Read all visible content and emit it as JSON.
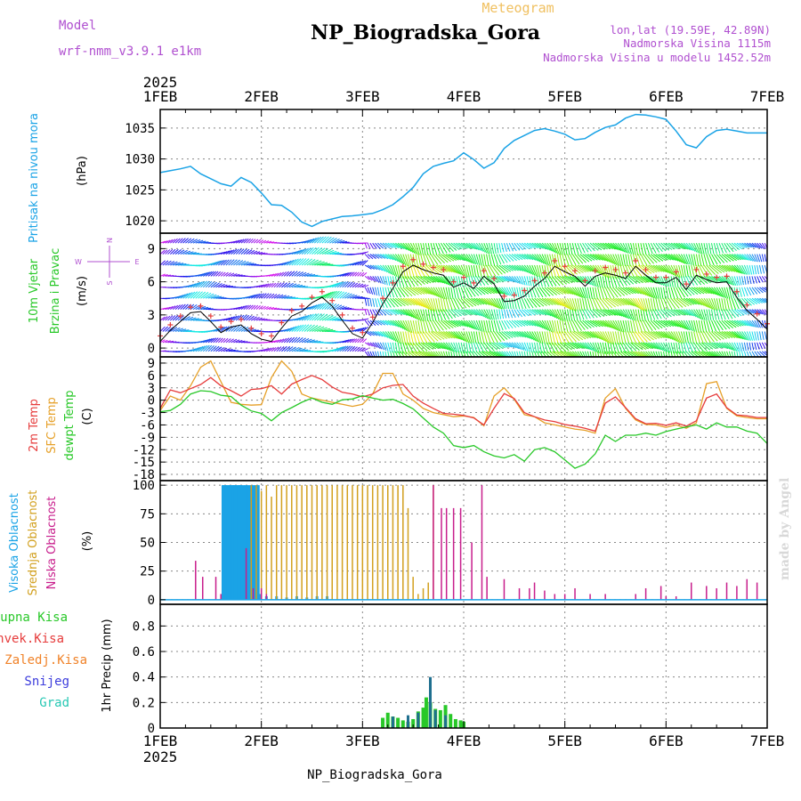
{
  "header": {
    "title": "NP_Biogradska_Gora",
    "subtitle": "Meteogram",
    "model_label": "Model",
    "model_name": "wrf-nmm_v3.9.1 e1km",
    "lonlat": "lon,lat (19.59E, 42.89N)",
    "elevation": "Nadmorska Visina 1115m",
    "model_elevation": "Nadmorska Visina u modelu 1452.52m",
    "year_top": "2025",
    "year_bottom": "2025",
    "footer_station": "NP_Biogradska_Gora",
    "watermark": "made by Angel"
  },
  "time_axis": {
    "labels": [
      "1FEB",
      "2FEB",
      "3FEB",
      "4FEB",
      "5FEB",
      "6FEB",
      "7FEB"
    ]
  },
  "colors": {
    "pressure": "#1aa3e6",
    "temp2m": "#e63c3c",
    "sfc_temp": "#e6a028",
    "dewpoint": "#28c828",
    "cloud_high": "#1aa3e6",
    "cloud_mid": "#d2a01e",
    "cloud_low": "#c81e8c",
    "precip_total": "#28c828",
    "precip_conv": "#e63c3c",
    "precip_frz": "#f08228",
    "precip_snow": "#3c3cdc",
    "precip_hail": "#28c8b4",
    "title_purple": "#b050d0",
    "subtitle_orange": "#f0c060"
  },
  "panels": {
    "pressure": {
      "label": "Pritisak na nivou mora",
      "unit": "(hPa)",
      "ticks": [
        "1020",
        "1025",
        "1030",
        "1035"
      ]
    },
    "wind": {
      "label1": "10m Vjetar",
      "label2": "Brzina i Pravac",
      "unit": "(m/s)",
      "ticks": [
        "0",
        "3",
        "6",
        "9"
      ],
      "compass": {
        "n": "N",
        "s": "S",
        "w": "W",
        "e": "E"
      }
    },
    "temp": {
      "label1": "2m Temp",
      "label2": "SFC Temp",
      "label3": "dewpt Temp",
      "unit": "(C)",
      "ticks": [
        "-18",
        "-15",
        "-12",
        "-9",
        "-6",
        "-3",
        "0",
        "3",
        "6",
        "9"
      ]
    },
    "cloud": {
      "label1": "Visoka Oblacnost",
      "label2": "Srednja Oblacnost",
      "label3": "Niska Oblacnost",
      "unit": "(%)",
      "ticks": [
        "0",
        "25",
        "50",
        "75",
        "100"
      ]
    },
    "precip": {
      "unit_label": "1hr Precip (mm)",
      "ticks": [
        "0",
        "0.2",
        "0.4",
        "0.6",
        "0.8"
      ],
      "legend": [
        "Ukupna Kisa",
        "Konvek.Kisa",
        "Zaledj.Kisa",
        "Snijeg",
        "Grad"
      ]
    }
  },
  "chart_data": [
    {
      "type": "line",
      "name": "sea-level-pressure",
      "x_unit": "days since 1FEB 00UTC",
      "ylabel": "Pritisak na nivou mora (hPa)",
      "ylim": [
        1018,
        1038
      ],
      "series": [
        {
          "name": "Pritisak",
          "x": [
            0,
            0.1,
            0.2,
            0.3,
            0.4,
            0.5,
            0.6,
            0.7,
            0.8,
            0.9,
            1.0,
            1.1,
            1.2,
            1.3,
            1.4,
            1.5,
            1.6,
            1.7,
            1.8,
            1.9,
            2.0,
            2.1,
            2.2,
            2.3,
            2.4,
            2.5,
            2.6,
            2.7,
            2.8,
            2.9,
            3.0,
            3.1,
            3.2,
            3.3,
            3.4,
            3.5,
            3.6,
            3.7,
            3.8,
            3.9,
            4.0,
            4.1,
            4.2,
            4.3,
            4.4,
            4.5,
            4.6,
            4.7,
            4.8,
            4.9,
            5.0,
            5.1,
            5.2,
            5.3,
            5.4,
            5.5,
            5.6,
            5.7,
            5.8,
            5.9,
            6.0
          ],
          "y": [
            1027.8,
            1028.1,
            1028.4,
            1028.8,
            1027.6,
            1026.8,
            1026.0,
            1025.6,
            1027.0,
            1026.2,
            1024.5,
            1022.6,
            1022.5,
            1021.4,
            1019.8,
            1019.1,
            1019.9,
            1020.3,
            1020.7,
            1020.8,
            1021.0,
            1021.2,
            1021.8,
            1022.6,
            1023.9,
            1025.4,
            1027.6,
            1028.8,
            1029.3,
            1029.7,
            1031.0,
            1029.9,
            1028.5,
            1029.4,
            1031.7,
            1033.0,
            1033.8,
            1034.6,
            1034.9,
            1034.5,
            1034.0,
            1033.1,
            1033.3,
            1034.3,
            1035.1,
            1035.5,
            1036.6,
            1037.2,
            1037.1,
            1036.8,
            1036.4,
            1034.5,
            1032.3,
            1031.8,
            1033.6,
            1034.6,
            1034.8,
            1034.5,
            1034.2,
            1034.2,
            1034.2
          ]
        }
      ]
    },
    {
      "type": "line",
      "name": "10m-wind-speed",
      "ylabel": "10m Vjetar Brzina i Pravac (m/s)",
      "ylim": [
        -0.8,
        10.4
      ],
      "series": [
        {
          "name": "Brzina",
          "x": [
            0,
            0.1,
            0.2,
            0.3,
            0.4,
            0.5,
            0.6,
            0.7,
            0.8,
            0.9,
            1.0,
            1.1,
            1.2,
            1.3,
            1.4,
            1.5,
            1.6,
            1.7,
            1.8,
            1.9,
            2.0,
            2.1,
            2.2,
            2.3,
            2.4,
            2.5,
            2.6,
            2.7,
            2.8,
            2.9,
            3.0,
            3.1,
            3.2,
            3.3,
            3.4,
            3.5,
            3.6,
            3.7,
            3.8,
            3.9,
            4.0,
            4.1,
            4.2,
            4.3,
            4.4,
            4.5,
            4.6,
            4.7,
            4.8,
            4.9,
            5.0,
            5.1,
            5.2,
            5.3,
            5.4,
            5.5,
            5.6,
            5.7,
            5.8,
            5.9,
            6.0
          ],
          "y": [
            0.6,
            1.6,
            2.4,
            3.2,
            3.3,
            2.4,
            1.4,
            1.9,
            2.1,
            1.3,
            0.8,
            0.6,
            1.8,
            2.9,
            3.3,
            4.1,
            4.6,
            3.8,
            2.5,
            1.3,
            0.9,
            2.3,
            4.0,
            5.4,
            6.9,
            7.5,
            7.1,
            6.8,
            6.6,
            5.5,
            5.9,
            5.4,
            6.5,
            5.8,
            4.2,
            4.3,
            4.7,
            5.6,
            6.3,
            7.4,
            6.9,
            6.5,
            5.6,
            6.5,
            6.8,
            6.6,
            6.3,
            7.4,
            6.6,
            5.9,
            5.9,
            6.4,
            5.3,
            6.6,
            6.2,
            5.9,
            6.0,
            4.6,
            3.4,
            2.6,
            1.7
          ]
        }
      ]
    },
    {
      "type": "line",
      "name": "temperatures",
      "ylabel": "(C)",
      "ylim": [
        -19.5,
        10.5
      ],
      "series": [
        {
          "name": "2m Temp",
          "x": [
            0,
            0.1,
            0.2,
            0.3,
            0.4,
            0.5,
            0.6,
            0.7,
            0.8,
            0.9,
            1.0,
            1.1,
            1.2,
            1.3,
            1.4,
            1.5,
            1.6,
            1.7,
            1.8,
            1.9,
            2.0,
            2.1,
            2.2,
            2.3,
            2.4,
            2.5,
            2.6,
            2.7,
            2.8,
            2.9,
            3.0,
            3.1,
            3.2,
            3.3,
            3.4,
            3.5,
            3.6,
            3.7,
            3.8,
            3.9,
            4.0,
            4.1,
            4.2,
            4.3,
            4.4,
            4.5,
            4.6,
            4.7,
            4.8,
            4.9,
            5.0,
            5.1,
            5.2,
            5.3,
            5.4,
            5.5,
            5.6,
            5.7,
            5.8,
            5.9,
            6.0
          ],
          "y": [
            -2.0,
            2.5,
            1.8,
            2.8,
            3.8,
            5.5,
            3.5,
            2.3,
            1.0,
            2.6,
            2.8,
            3.5,
            1.5,
            3.9,
            5.0,
            6.0,
            5.0,
            3.2,
            1.9,
            1.5,
            0.8,
            1.5,
            3.0,
            3.6,
            3.8,
            1.0,
            -0.7,
            -2.0,
            -3.2,
            -3.4,
            -3.7,
            -4.3,
            -6.0,
            -2.0,
            1.6,
            0.4,
            -3.0,
            -4.0,
            -4.8,
            -5.2,
            -5.9,
            -6.3,
            -6.8,
            -7.5,
            -0.7,
            0.8,
            -1.8,
            -4.5,
            -5.7,
            -5.6,
            -6.1,
            -5.5,
            -6.3,
            -5.0,
            0.5,
            1.5,
            -1.8,
            -3.6,
            -3.8,
            -4.2,
            -4.2
          ]
        },
        {
          "name": "SFC Temp",
          "x": [
            0,
            0.1,
            0.2,
            0.3,
            0.4,
            0.5,
            0.6,
            0.7,
            0.8,
            0.9,
            1.0,
            1.1,
            1.2,
            1.3,
            1.4,
            1.5,
            1.6,
            1.7,
            1.8,
            1.9,
            2.0,
            2.1,
            2.2,
            2.3,
            2.4,
            2.5,
            2.6,
            2.7,
            2.8,
            2.9,
            3.0,
            3.1,
            3.2,
            3.3,
            3.4,
            3.5,
            3.6,
            3.7,
            3.8,
            3.9,
            4.0,
            4.1,
            4.2,
            4.3,
            4.4,
            4.5,
            4.6,
            4.7,
            4.8,
            4.9,
            5.0,
            5.1,
            5.2,
            5.3,
            5.4,
            5.5,
            5.6,
            5.7,
            5.8,
            5.9,
            6.0
          ],
          "y": [
            -2.5,
            1.0,
            0.0,
            3.5,
            8.0,
            9.5,
            4.5,
            -0.5,
            -1.0,
            -1.2,
            -1.1,
            5.5,
            9.5,
            7.0,
            1.5,
            0.5,
            0.0,
            -0.5,
            -1.0,
            -1.5,
            -1.0,
            1.5,
            6.5,
            6.5,
            1.5,
            0.0,
            -2.0,
            -3.0,
            -3.5,
            -4.0,
            -3.8,
            -4.2,
            -6.2,
            1.0,
            3.0,
            0.2,
            -3.5,
            -4.0,
            -5.5,
            -6.0,
            -6.5,
            -7.0,
            -7.3,
            -8.0,
            0.5,
            2.8,
            -2.0,
            -4.8,
            -5.9,
            -6.0,
            -6.6,
            -6.0,
            -6.8,
            -5.5,
            4.0,
            4.5,
            -2.0,
            -3.8,
            -4.2,
            -4.5,
            -4.5
          ]
        },
        {
          "name": "dewpt Temp",
          "x": [
            0,
            0.1,
            0.2,
            0.3,
            0.4,
            0.5,
            0.6,
            0.7,
            0.8,
            0.9,
            1.0,
            1.1,
            1.2,
            1.3,
            1.4,
            1.5,
            1.6,
            1.7,
            1.8,
            1.9,
            2.0,
            2.1,
            2.2,
            2.3,
            2.4,
            2.5,
            2.6,
            2.7,
            2.8,
            2.9,
            3.0,
            3.1,
            3.2,
            3.3,
            3.4,
            3.5,
            3.6,
            3.7,
            3.8,
            3.9,
            4.0,
            4.1,
            4.2,
            4.3,
            4.4,
            4.5,
            4.6,
            4.7,
            4.8,
            4.9,
            5.0,
            5.1,
            5.2,
            5.3,
            5.4,
            5.5,
            5.6,
            5.7,
            5.8,
            5.9,
            6.0
          ],
          "y": [
            -2.8,
            -2.5,
            -1.0,
            1.5,
            2.3,
            2.1,
            1.2,
            0.9,
            -1.2,
            -2.6,
            -3.2,
            -5.0,
            -3.0,
            -1.8,
            -0.5,
            0.5,
            -0.5,
            -1.0,
            0.1,
            0.3,
            1.1,
            0.5,
            0.0,
            0.2,
            -0.8,
            -2.1,
            -4.3,
            -6.5,
            -8.0,
            -11.0,
            -11.5,
            -11.0,
            -12.5,
            -13.5,
            -14.0,
            -13.2,
            -14.8,
            -12.0,
            -11.5,
            -12.5,
            -14.5,
            -16.5,
            -15.5,
            -13.0,
            -8.5,
            -10.0,
            -8.5,
            -8.5,
            -8.0,
            -8.5,
            -7.6,
            -7.0,
            -6.5,
            -6.0,
            -7.0,
            -5.5,
            -6.5,
            -6.5,
            -7.5,
            -8.0,
            -10.5
          ]
        }
      ]
    },
    {
      "type": "bar",
      "name": "cloud-cover",
      "ylabel": "(%)",
      "ylim": [
        -4,
        104
      ],
      "series": [
        {
          "name": "Visoka Oblacnost",
          "x": [
            0.62,
            0.63,
            0.64,
            0.65,
            0.66,
            0.67,
            0.68,
            0.69,
            0.7,
            0.71,
            0.72,
            0.73,
            0.74,
            0.75,
            0.76,
            0.77,
            0.78,
            0.79,
            0.8,
            0.81,
            0.82,
            0.83,
            0.84,
            0.85,
            0.86,
            0.87,
            0.88,
            0.89,
            0.9,
            0.91,
            0.92,
            0.93,
            0.94,
            0.95,
            0.96,
            0.97,
            0.98,
            1.05,
            1.15,
            1.25,
            1.35,
            1.45,
            1.55,
            1.65
          ],
          "y": [
            100,
            100,
            80,
            100,
            100,
            75,
            100,
            100,
            60,
            100,
            100,
            100,
            100,
            100,
            95,
            100,
            100,
            100,
            100,
            20,
            100,
            30,
            100,
            60,
            100,
            30,
            100,
            95,
            100,
            10,
            100,
            90,
            100,
            25,
            100,
            100,
            5,
            3,
            3,
            2,
            3,
            2,
            3,
            3
          ]
        },
        {
          "name": "Srednja Oblacnost",
          "x": [
            0.9,
            0.95,
            1.0,
            1.05,
            1.1,
            1.15,
            1.2,
            1.25,
            1.3,
            1.35,
            1.4,
            1.45,
            1.5,
            1.55,
            1.6,
            1.65,
            1.7,
            1.75,
            1.8,
            1.85,
            1.9,
            1.95,
            2.0,
            2.05,
            2.1,
            2.15,
            2.2,
            2.25,
            2.3,
            2.35,
            2.4,
            2.45,
            2.5,
            2.55,
            2.6,
            2.65,
            2.7,
            2.75
          ],
          "y": [
            100,
            100,
            95,
            100,
            90,
            100,
            100,
            100,
            100,
            100,
            100,
            100,
            100,
            100,
            100,
            100,
            100,
            100,
            100,
            100,
            100,
            100,
            100,
            100,
            100,
            100,
            100,
            100,
            100,
            100,
            100,
            80,
            20,
            5,
            10,
            15,
            100,
            0
          ]
        },
        {
          "name": "Niska Oblacnost",
          "x": [
            0.35,
            0.42,
            0.55,
            0.6,
            0.85,
            0.92,
            1.0,
            1.05,
            2.7,
            2.78,
            2.83,
            2.9,
            2.97,
            3.08,
            3.18,
            3.23,
            3.4,
            3.55,
            3.65,
            3.7,
            3.8,
            3.9,
            4.0,
            4.1,
            4.25,
            4.4,
            4.7,
            4.8,
            4.95,
            5.0,
            5.1,
            5.25,
            5.4,
            5.5,
            5.6,
            5.7,
            5.8,
            5.9
          ],
          "y": [
            34,
            20,
            20,
            5,
            45,
            10,
            10,
            5,
            100,
            80,
            80,
            80,
            80,
            50,
            100,
            20,
            18,
            10,
            10,
            15,
            8,
            5,
            5,
            10,
            5,
            5,
            5,
            10,
            12,
            3,
            3,
            15,
            12,
            10,
            15,
            12,
            18,
            15
          ]
        }
      ]
    },
    {
      "type": "bar",
      "name": "hourly-precipitation",
      "ylabel": "1hr Precip (mm)",
      "ylim": [
        0,
        0.97
      ],
      "series": [
        {
          "name": "Ukupna Kisa",
          "x": [
            2.2,
            2.25,
            2.3,
            2.35,
            2.4,
            2.45,
            2.5,
            2.55,
            2.6,
            2.63,
            2.67,
            2.72,
            2.77,
            2.82,
            2.87,
            2.92,
            2.97,
            3.0
          ],
          "y": [
            0.08,
            0.12,
            0.09,
            0.08,
            0.06,
            0.05,
            0.07,
            0.13,
            0.16,
            0.24,
            0.2,
            0.15,
            0.14,
            0.18,
            0.11,
            0.07,
            0.06,
            0.05
          ]
        },
        {
          "name": "Snijeg",
          "x": [
            2.3,
            2.45,
            2.55,
            2.67,
            2.72,
            2.82
          ],
          "y": [
            0.09,
            0.1,
            0.12,
            0.4,
            0.14,
            0.1
          ]
        }
      ]
    }
  ]
}
